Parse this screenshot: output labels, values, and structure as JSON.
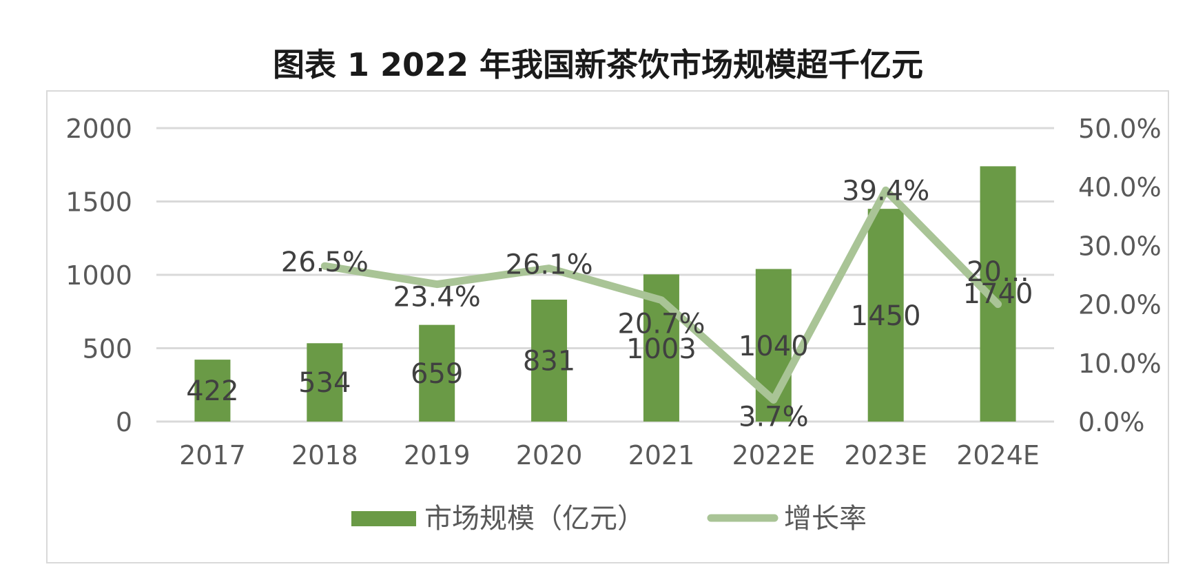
{
  "chart_data": {
    "type": "bar",
    "title": "图表 1 2022 年我国新茶饮市场规模超千亿元",
    "categories": [
      "2017",
      "2018",
      "2019",
      "2020",
      "2021",
      "2022E",
      "2023E",
      "2024E"
    ],
    "series": [
      {
        "name": "市场规模（亿元）",
        "type": "bar",
        "axis": "left",
        "color": "#6a9a46",
        "values": [
          422,
          534,
          659,
          831,
          1003,
          1040,
          1450,
          1740
        ],
        "labels": [
          "422",
          "534",
          "659",
          "831",
          "1003",
          "1040",
          "1450",
          "1740"
        ]
      },
      {
        "name": "增长率",
        "type": "line",
        "axis": "right",
        "color": "#a9c496",
        "values": [
          null,
          26.5,
          23.4,
          26.1,
          20.7,
          3.7,
          39.4,
          20.0
        ],
        "labels": [
          "",
          "26.5%",
          "23.4%",
          "26.1%",
          "20.7%",
          "3.7%",
          "39.4%",
          "20…"
        ]
      }
    ],
    "y_left": {
      "min": 0,
      "max": 2000,
      "ticks": [
        "0",
        "500",
        "1000",
        "1500",
        "2000"
      ]
    },
    "y_right": {
      "min": 0,
      "max": 50,
      "ticks": [
        "0.0%",
        "10.0%",
        "20.0%",
        "30.0%",
        "40.0%",
        "50.0%"
      ]
    },
    "grid": true,
    "legend_position": "bottom"
  }
}
